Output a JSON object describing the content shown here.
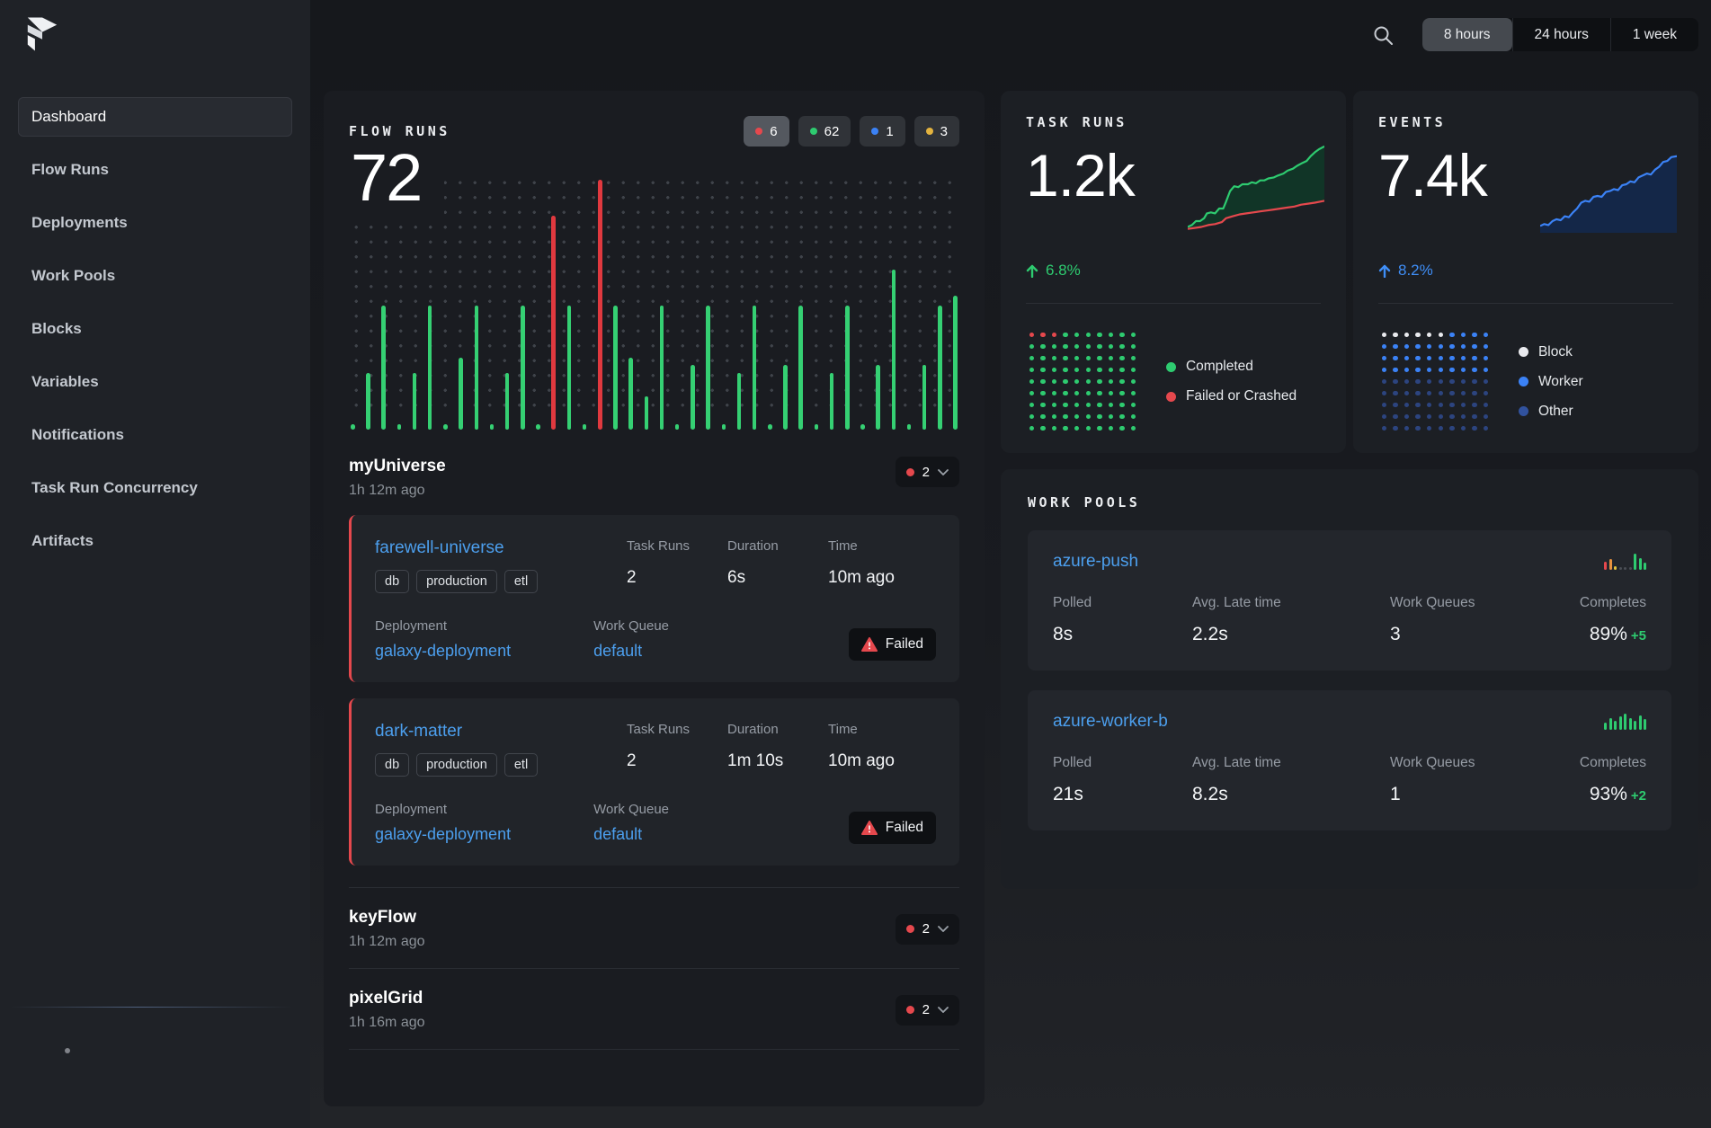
{
  "colors": {
    "green": "#2ecb70",
    "red": "#e5484d",
    "blue": "#3b82f6",
    "dim_blue": "#31529e",
    "yellow": "#e3b33f",
    "orange": "#e8923e",
    "white_dot": "#e9eaee",
    "gray_bar": "#4a4e55",
    "link_blue": "#4c9fee",
    "bar_green": "#35d073",
    "bar_red": "#e0393f"
  },
  "header": {
    "time_ranges": [
      "8 hours",
      "24 hours",
      "1 week"
    ],
    "active_range": "8 hours"
  },
  "sidebar": {
    "items": [
      {
        "label": "Dashboard",
        "active": true
      },
      {
        "label": "Flow Runs",
        "active": false
      },
      {
        "label": "Deployments",
        "active": false
      },
      {
        "label": "Work Pools",
        "active": false
      },
      {
        "label": "Blocks",
        "active": false
      },
      {
        "label": "Variables",
        "active": false
      },
      {
        "label": "Notifications",
        "active": false
      },
      {
        "label": "Task Run Concurrency",
        "active": false
      },
      {
        "label": "Artifacts",
        "active": false
      }
    ]
  },
  "flow_runs_panel": {
    "title": "FLOW RUNS",
    "total": "72",
    "badges": [
      {
        "count": "6",
        "color": "#e5484d",
        "active": true
      },
      {
        "count": "62",
        "color": "#2ecb70",
        "active": false
      },
      {
        "count": "1",
        "color": "#3b82f6",
        "active": false
      },
      {
        "count": "3",
        "color": "#e3b33f",
        "active": false
      }
    ],
    "labels": {
      "task_runs": "Task Runs",
      "duration": "Duration",
      "time": "Time",
      "deployment": "Deployment",
      "work_queue": "Work Queue"
    },
    "groups": [
      {
        "name": "myUniverse",
        "time": "1h 12m ago",
        "count": "2",
        "runs": [
          {
            "name": "farewell-universe",
            "tags": [
              "db",
              "production",
              "etl"
            ],
            "task_runs": "2",
            "duration": "6s",
            "time": "10m ago",
            "deployment": "galaxy-deployment",
            "work_queue": "default",
            "state": "Failed"
          },
          {
            "name": "dark-matter",
            "tags": [
              "db",
              "production",
              "etl"
            ],
            "task_runs": "2",
            "duration": "1m 10s",
            "time": "10m ago",
            "deployment": "galaxy-deployment",
            "work_queue": "default",
            "state": "Failed"
          }
        ]
      },
      {
        "name": "keyFlow",
        "time": "1h 12m ago",
        "count": "2",
        "runs": []
      },
      {
        "name": "pixelGrid",
        "time": "1h 16m ago",
        "count": "2",
        "runs": []
      }
    ]
  },
  "task_runs_panel": {
    "title": "TASK RUNS",
    "total": "1.2k",
    "delta": "6.8%",
    "legend": [
      {
        "label": "Completed",
        "color": "#2ecb70"
      },
      {
        "label": "Failed or Crashed",
        "color": "#e5484d"
      }
    ]
  },
  "events_panel": {
    "title": "EVENTS",
    "total": "7.4k",
    "delta": "8.2%",
    "legend": [
      {
        "label": "Block",
        "color": "#e9eaee"
      },
      {
        "label": "Worker",
        "color": "#3b82f6"
      },
      {
        "label": "Other",
        "color": "#31529e"
      }
    ]
  },
  "work_pools_panel": {
    "title": "WORK POOLS",
    "labels": {
      "polled": "Polled",
      "avg_late": "Avg. Late time",
      "queues": "Work Queues",
      "completes": "Completes"
    },
    "pools": [
      {
        "name": "azure-push",
        "polled": "8s",
        "avg_late": "2.2s",
        "queues": "3",
        "completes": "89%",
        "delta": "+5"
      },
      {
        "name": "azure-worker-b",
        "polled": "21s",
        "avg_late": "8.2s",
        "queues": "1",
        "completes": "93%",
        "delta": "+2"
      }
    ]
  },
  "chart_data": [
    {
      "id": "flow-run-history",
      "type": "bar",
      "title": "FLOW RUNS",
      "total": 72,
      "legend_counts": {
        "failed": 6,
        "completed": 62,
        "running": 1,
        "late": 3
      },
      "color_key": {
        "g": "#35d073",
        "r": "#e0393f"
      },
      "bars": [
        [
          0.02,
          "g"
        ],
        [
          0.22,
          "g"
        ],
        [
          0.48,
          "g"
        ],
        [
          0.02,
          "g"
        ],
        [
          0.22,
          "g"
        ],
        [
          0.48,
          "g"
        ],
        [
          0.02,
          "g"
        ],
        [
          0.28,
          "g"
        ],
        [
          0.48,
          "g"
        ],
        [
          0.02,
          "g"
        ],
        [
          0.22,
          "g"
        ],
        [
          0.48,
          "g"
        ],
        [
          0.02,
          "g"
        ],
        [
          0.83,
          "r"
        ],
        [
          0.48,
          "g"
        ],
        [
          0.02,
          "g"
        ],
        [
          0.97,
          "r"
        ],
        [
          0.48,
          "g"
        ],
        [
          0.28,
          "g"
        ],
        [
          0.13,
          "g"
        ],
        [
          0.48,
          "g"
        ],
        [
          0.02,
          "g"
        ],
        [
          0.25,
          "g"
        ],
        [
          0.48,
          "g"
        ],
        [
          0.02,
          "g"
        ],
        [
          0.22,
          "g"
        ],
        [
          0.48,
          "g"
        ],
        [
          0.02,
          "g"
        ],
        [
          0.25,
          "g"
        ],
        [
          0.48,
          "g"
        ],
        [
          0.02,
          "g"
        ],
        [
          0.22,
          "g"
        ],
        [
          0.48,
          "g"
        ],
        [
          0.02,
          "g"
        ],
        [
          0.25,
          "g"
        ],
        [
          0.62,
          "g"
        ],
        [
          0.02,
          "g"
        ],
        [
          0.25,
          "g"
        ],
        [
          0.48,
          "g"
        ],
        [
          0.52,
          "g"
        ]
      ]
    },
    {
      "id": "task-runs-trend",
      "type": "area",
      "x_range": [
        0,
        100
      ],
      "y_range": [
        0,
        100
      ],
      "series": [
        {
          "name": "Completed",
          "color": "#2ecb70",
          "fill": "#113527",
          "points": [
            [
              0,
              94
            ],
            [
              3,
              92
            ],
            [
              6,
              88
            ],
            [
              9,
              88
            ],
            [
              12,
              85
            ],
            [
              14,
              80
            ],
            [
              17,
              79
            ],
            [
              20,
              80
            ],
            [
              23,
              75
            ],
            [
              26,
              75
            ],
            [
              28,
              68
            ],
            [
              31,
              57
            ],
            [
              34,
              52
            ],
            [
              37,
              53
            ],
            [
              40,
              50
            ],
            [
              44,
              50
            ],
            [
              47,
              48
            ],
            [
              50,
              49
            ],
            [
              53,
              46
            ],
            [
              56,
              46
            ],
            [
              59,
              44
            ],
            [
              63,
              43
            ],
            [
              66,
              41
            ],
            [
              70,
              39
            ],
            [
              73,
              36
            ],
            [
              77,
              34
            ],
            [
              80,
              31
            ],
            [
              84,
              28
            ],
            [
              87,
              26
            ],
            [
              90,
              21
            ],
            [
              93,
              17
            ],
            [
              96,
              14
            ],
            [
              100,
              11
            ]
          ]
        },
        {
          "name": "Failed or Crashed",
          "color": "#e5484d",
          "fill": "#1c1f24",
          "points": [
            [
              0,
              96
            ],
            [
              5,
              95
            ],
            [
              10,
              94
            ],
            [
              15,
              92
            ],
            [
              20,
              91
            ],
            [
              25,
              89
            ],
            [
              28,
              85
            ],
            [
              33,
              83
            ],
            [
              38,
              81
            ],
            [
              43,
              80
            ],
            [
              48,
              79
            ],
            [
              53,
              78
            ],
            [
              58,
              77
            ],
            [
              63,
              76
            ],
            [
              68,
              75
            ],
            [
              73,
              74
            ],
            [
              78,
              73
            ],
            [
              83,
              71
            ],
            [
              88,
              70
            ],
            [
              93,
              69
            ],
            [
              100,
              67
            ]
          ]
        }
      ]
    },
    {
      "id": "events-trend",
      "type": "area",
      "x_range": [
        0,
        100
      ],
      "y_range": [
        0,
        100
      ],
      "series": [
        {
          "name": "Events",
          "color": "#3b82f6",
          "fill": "#142748",
          "points": [
            [
              0,
              93
            ],
            [
              3,
              91
            ],
            [
              6,
              92
            ],
            [
              9,
              88
            ],
            [
              12,
              86
            ],
            [
              15,
              87
            ],
            [
              18,
              83
            ],
            [
              21,
              84
            ],
            [
              24,
              79
            ],
            [
              27,
              75
            ],
            [
              30,
              69
            ],
            [
              33,
              67
            ],
            [
              36,
              68
            ],
            [
              39,
              63
            ],
            [
              42,
              62
            ],
            [
              45,
              63
            ],
            [
              48,
              58
            ],
            [
              51,
              57
            ],
            [
              54,
              55
            ],
            [
              57,
              56
            ],
            [
              60,
              51
            ],
            [
              63,
              50
            ],
            [
              66,
              47
            ],
            [
              69,
              48
            ],
            [
              72,
              43
            ],
            [
              75,
              41
            ],
            [
              78,
              39
            ],
            [
              81,
              40
            ],
            [
              84,
              35
            ],
            [
              87,
              32
            ],
            [
              90,
              27
            ],
            [
              93,
              26
            ],
            [
              96,
              22
            ],
            [
              100,
              21
            ]
          ]
        }
      ]
    },
    {
      "id": "task-runs-grid",
      "type": "heatmap",
      "color_key": {
        "g": "#2ecb70",
        "r": "#e5484d"
      },
      "rows": [
        [
          "r",
          "r",
          "r",
          "g",
          "g",
          "g",
          "g",
          "g",
          "g",
          "g"
        ],
        [
          "g",
          "g",
          "g",
          "g",
          "g",
          "g",
          "g",
          "g",
          "g",
          "g"
        ],
        [
          "g",
          "g",
          "g",
          "g",
          "g",
          "g",
          "g",
          "g",
          "g",
          "g"
        ],
        [
          "g",
          "g",
          "g",
          "g",
          "g",
          "g",
          "g",
          "g",
          "g",
          "g"
        ],
        [
          "g",
          "g",
          "g",
          "g",
          "g",
          "g",
          "g",
          "g",
          "g",
          "g"
        ],
        [
          "g",
          "g",
          "g",
          "g",
          "g",
          "g",
          "g",
          "g",
          "g",
          "g"
        ],
        [
          "g",
          "g",
          "g",
          "g",
          "g",
          "g",
          "g",
          "g",
          "g",
          "g"
        ],
        [
          "g",
          "g",
          "g",
          "g",
          "g",
          "g",
          "g",
          "g",
          "g",
          "g"
        ],
        [
          "g",
          "g",
          "g",
          "g",
          "g",
          "g",
          "g",
          "g",
          "g",
          "g"
        ]
      ]
    },
    {
      "id": "events-grid",
      "type": "heatmap",
      "color_key": {
        "w": "#e9eaee",
        "b": "#3b82f6",
        "d": "#31529e"
      },
      "rows": [
        [
          "w",
          "w",
          "w",
          "w",
          "w",
          "w",
          "b",
          "b",
          "b",
          "b"
        ],
        [
          "b",
          "b",
          "b",
          "b",
          "b",
          "b",
          "b",
          "b",
          "b",
          "b"
        ],
        [
          "b",
          "b",
          "b",
          "b",
          "b",
          "b",
          "b",
          "b",
          "b",
          "b"
        ],
        [
          "b",
          "b",
          "b",
          "b",
          "b",
          "b",
          "b",
          "b",
          "b",
          "b"
        ],
        [
          "d",
          "d",
          "d",
          "d",
          "d",
          "d",
          "d",
          "d",
          "d",
          "d"
        ],
        [
          "d",
          "d",
          "d",
          "d",
          "d",
          "d",
          "d",
          "d",
          "d",
          "d"
        ],
        [
          "d",
          "d",
          "d",
          "d",
          "d",
          "d",
          "d",
          "d",
          "d",
          "d"
        ],
        [
          "d",
          "d",
          "d",
          "d",
          "d",
          "d",
          "d",
          "d",
          "d",
          "d"
        ],
        [
          "d",
          "d",
          "d",
          "d",
          "d",
          "d",
          "d",
          "d",
          "d",
          "d"
        ]
      ]
    },
    {
      "id": "azure-push-history",
      "type": "bar",
      "color_key": {
        "g": "#2ecb70",
        "r": "#e5484d",
        "o": "#e8923e",
        "y": "#e3c13f",
        "x": "#4a4e55"
      },
      "bars": [
        [
          0.5,
          "r"
        ],
        [
          0.65,
          "o"
        ],
        [
          0.2,
          "y"
        ],
        [
          0.12,
          "x"
        ],
        [
          0.12,
          "x"
        ],
        [
          0.12,
          "x"
        ],
        [
          1,
          "g"
        ],
        [
          0.7,
          "g"
        ],
        [
          0.45,
          "g"
        ]
      ]
    },
    {
      "id": "azure-worker-b-history",
      "type": "bar",
      "color_key": {
        "g": "#2ecb70"
      },
      "bars": [
        [
          0.45,
          "g"
        ],
        [
          0.7,
          "g"
        ],
        [
          0.55,
          "g"
        ],
        [
          0.85,
          "g"
        ],
        [
          1,
          "g"
        ],
        [
          0.75,
          "g"
        ],
        [
          0.55,
          "g"
        ],
        [
          0.9,
          "g"
        ],
        [
          0.65,
          "g"
        ]
      ]
    }
  ]
}
